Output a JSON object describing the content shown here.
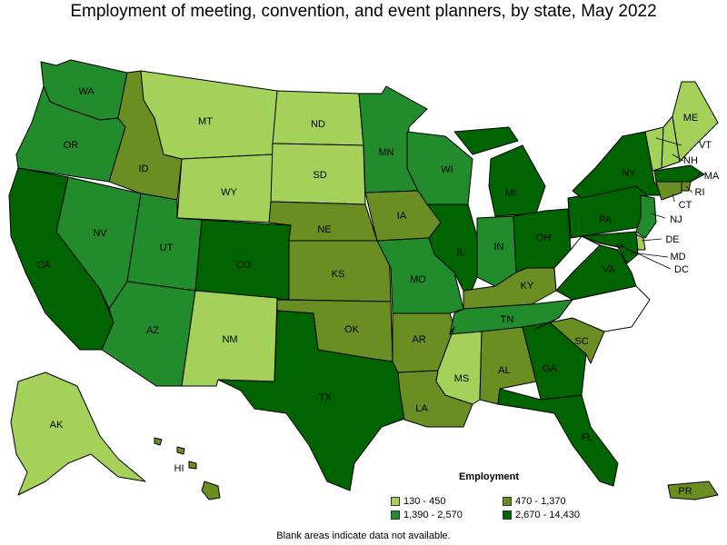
{
  "title": "Employment of meeting, convention, and event planners, by state, May 2022",
  "legend": {
    "title": "Employment",
    "bins": [
      {
        "label": "130 - 450",
        "color": "#a3d15a"
      },
      {
        "label": "470 - 1,370",
        "color": "#6b8e23"
      },
      {
        "label": "1,390 - 2,570",
        "color": "#228b2b"
      },
      {
        "label": "2,670 - 14,430",
        "color": "#006400"
      }
    ]
  },
  "footnote": "Blank areas indicate data not available.",
  "states": [
    {
      "abbr": "WA",
      "bin": 2
    },
    {
      "abbr": "OR",
      "bin": 2
    },
    {
      "abbr": "CA",
      "bin": 3
    },
    {
      "abbr": "NV",
      "bin": 2
    },
    {
      "abbr": "ID",
      "bin": 1
    },
    {
      "abbr": "MT",
      "bin": 0
    },
    {
      "abbr": "WY",
      "bin": 0
    },
    {
      "abbr": "UT",
      "bin": 2
    },
    {
      "abbr": "AZ",
      "bin": 2
    },
    {
      "abbr": "CO",
      "bin": 3
    },
    {
      "abbr": "NM",
      "bin": 0
    },
    {
      "abbr": "ND",
      "bin": 0
    },
    {
      "abbr": "SD",
      "bin": 0
    },
    {
      "abbr": "NE",
      "bin": 1
    },
    {
      "abbr": "KS",
      "bin": 1
    },
    {
      "abbr": "OK",
      "bin": 1
    },
    {
      "abbr": "TX",
      "bin": 3
    },
    {
      "abbr": "MN",
      "bin": 2
    },
    {
      "abbr": "IA",
      "bin": 1
    },
    {
      "abbr": "MO",
      "bin": 2
    },
    {
      "abbr": "AR",
      "bin": 1
    },
    {
      "abbr": "LA",
      "bin": 1
    },
    {
      "abbr": "WI",
      "bin": 2
    },
    {
      "abbr": "IL",
      "bin": 3
    },
    {
      "abbr": "MI",
      "bin": 3
    },
    {
      "abbr": "IN",
      "bin": 2
    },
    {
      "abbr": "OH",
      "bin": 3
    },
    {
      "abbr": "KY",
      "bin": 1
    },
    {
      "abbr": "TN",
      "bin": 2
    },
    {
      "abbr": "MS",
      "bin": 0
    },
    {
      "abbr": "AL",
      "bin": 1
    },
    {
      "abbr": "GA",
      "bin": 3
    },
    {
      "abbr": "FL",
      "bin": 3
    },
    {
      "abbr": "SC",
      "bin": 1
    },
    {
      "abbr": "NC",
      "bin": null
    },
    {
      "abbr": "VA",
      "bin": 3
    },
    {
      "abbr": "WV",
      "bin": null
    },
    {
      "abbr": "PA",
      "bin": 3
    },
    {
      "abbr": "NY",
      "bin": 3
    },
    {
      "abbr": "VT",
      "bin": 0
    },
    {
      "abbr": "NH",
      "bin": 0
    },
    {
      "abbr": "ME",
      "bin": 0
    },
    {
      "abbr": "MA",
      "bin": 3
    },
    {
      "abbr": "RI",
      "bin": 1
    },
    {
      "abbr": "CT",
      "bin": 1
    },
    {
      "abbr": "NJ",
      "bin": 2
    },
    {
      "abbr": "DE",
      "bin": 0
    },
    {
      "abbr": "MD",
      "bin": 3
    },
    {
      "abbr": "DC",
      "bin": 3
    },
    {
      "abbr": "AK",
      "bin": 0
    },
    {
      "abbr": "HI",
      "bin": 1
    },
    {
      "abbr": "PR",
      "bin": 1
    }
  ]
}
